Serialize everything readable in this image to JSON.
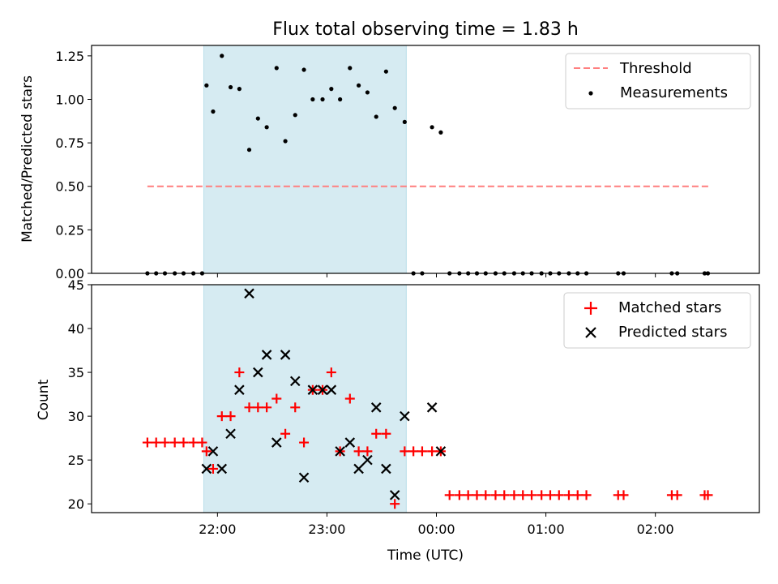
{
  "chart_data": [
    {
      "type": "scatter",
      "title": "Flux total observing time = 1.83 h",
      "xlabel": "",
      "ylabel": "Matched/Predicted stars",
      "ylim": [
        0,
        1.31
      ],
      "yticks": [
        "0.00",
        "0.25",
        "0.50",
        "0.75",
        "1.00",
        "1.25"
      ],
      "shaded_x": [
        21.875,
        23.725
      ],
      "legend": {
        "position": "top-right",
        "entries": [
          "Threshold",
          "Measurements"
        ]
      },
      "series": [
        {
          "name": "Threshold",
          "kind": "dashed-line",
          "color": "#ff7f7f",
          "x": [
            21.36,
            24.08,
            26.5
          ],
          "y": [
            0.5,
            0.5,
            0.5
          ]
        },
        {
          "name": "Measurements",
          "kind": "dot",
          "color": "#000000",
          "x": [
            21.36,
            21.44,
            21.52,
            21.61,
            21.69,
            21.78,
            21.86,
            21.9,
            21.96,
            22.04,
            22.12,
            22.2,
            22.29,
            22.37,
            22.45,
            22.54,
            22.62,
            22.71,
            22.79,
            22.87,
            22.96,
            23.04,
            23.12,
            23.21,
            23.29,
            23.37,
            23.45,
            23.54,
            23.62,
            23.71,
            23.79,
            23.87,
            23.96,
            24.04,
            24.12,
            24.21,
            24.29,
            24.37,
            24.45,
            24.54,
            24.62,
            24.71,
            24.79,
            24.87,
            24.96,
            25.04,
            25.12,
            25.21,
            25.29,
            25.37,
            25.66,
            25.71,
            26.15,
            26.2,
            26.45,
            26.48
          ],
          "y": [
            0,
            0,
            0,
            0,
            0,
            0,
            0,
            1.08,
            0.93,
            1.25,
            1.07,
            1.06,
            0.71,
            0.89,
            0.84,
            1.18,
            0.76,
            0.91,
            1.17,
            1.0,
            1.0,
            1.06,
            1.0,
            1.18,
            1.08,
            1.04,
            0.9,
            1.16,
            0.95,
            0.87,
            0,
            0,
            0.84,
            0.81,
            0,
            0,
            0,
            0,
            0,
            0,
            0,
            0,
            0,
            0,
            0,
            0,
            0,
            0,
            0,
            0,
            0,
            0,
            0,
            0,
            0,
            0
          ]
        }
      ]
    },
    {
      "type": "scatter",
      "title": "",
      "xlabel": "Time (UTC)",
      "ylabel": "Count",
      "ylim": [
        19,
        45
      ],
      "yticks": [
        "20",
        "25",
        "30",
        "35",
        "40",
        "45"
      ],
      "xticks": [
        "22:00",
        "23:00",
        "00:00",
        "01:00",
        "02:00"
      ],
      "xtick_values": [
        22,
        23,
        24,
        25,
        26
      ],
      "xlim": [
        20.85,
        26.95
      ],
      "shaded_x": [
        21.875,
        23.725
      ],
      "legend": {
        "position": "top-right",
        "entries": [
          "Matched stars",
          "Predicted stars"
        ]
      },
      "series": [
        {
          "name": "Matched stars",
          "kind": "plus",
          "color": "#ff0000",
          "x": [
            21.36,
            21.44,
            21.52,
            21.61,
            21.69,
            21.78,
            21.86,
            21.9,
            21.96,
            22.04,
            22.12,
            22.2,
            22.29,
            22.37,
            22.45,
            22.54,
            22.62,
            22.71,
            22.79,
            22.87,
            22.96,
            23.04,
            23.12,
            23.21,
            23.29,
            23.37,
            23.45,
            23.54,
            23.62,
            23.71,
            23.79,
            23.87,
            23.96,
            24.04,
            24.12,
            24.21,
            24.29,
            24.37,
            24.45,
            24.54,
            24.62,
            24.71,
            24.79,
            24.87,
            24.96,
            25.04,
            25.12,
            25.21,
            25.29,
            25.37,
            25.66,
            25.71,
            26.15,
            26.2,
            26.45,
            26.48
          ],
          "y": [
            27,
            27,
            27,
            27,
            27,
            27,
            27,
            26,
            24,
            30,
            30,
            35,
            31,
            31,
            31,
            32,
            28,
            31,
            27,
            33,
            33,
            35,
            26,
            32,
            26,
            26,
            28,
            28,
            20,
            26,
            26,
            26,
            26,
            26,
            21,
            21,
            21,
            21,
            21,
            21,
            21,
            21,
            21,
            21,
            21,
            21,
            21,
            21,
            21,
            21,
            21,
            21,
            21,
            21,
            21,
            21
          ]
        },
        {
          "name": "Predicted stars",
          "kind": "x",
          "color": "#000000",
          "x": [
            21.9,
            21.96,
            22.04,
            22.12,
            22.2,
            22.29,
            22.37,
            22.45,
            22.54,
            22.62,
            22.71,
            22.79,
            22.87,
            22.96,
            23.04,
            23.12,
            23.21,
            23.29,
            23.37,
            23.45,
            23.54,
            23.62,
            23.71,
            23.96,
            24.04
          ],
          "y": [
            24,
            26,
            24,
            28,
            33,
            44,
            35,
            37,
            27,
            37,
            34,
            23,
            33,
            33,
            33,
            26,
            27,
            24,
            25,
            31,
            24,
            21,
            30,
            31,
            26
          ]
        }
      ]
    }
  ]
}
